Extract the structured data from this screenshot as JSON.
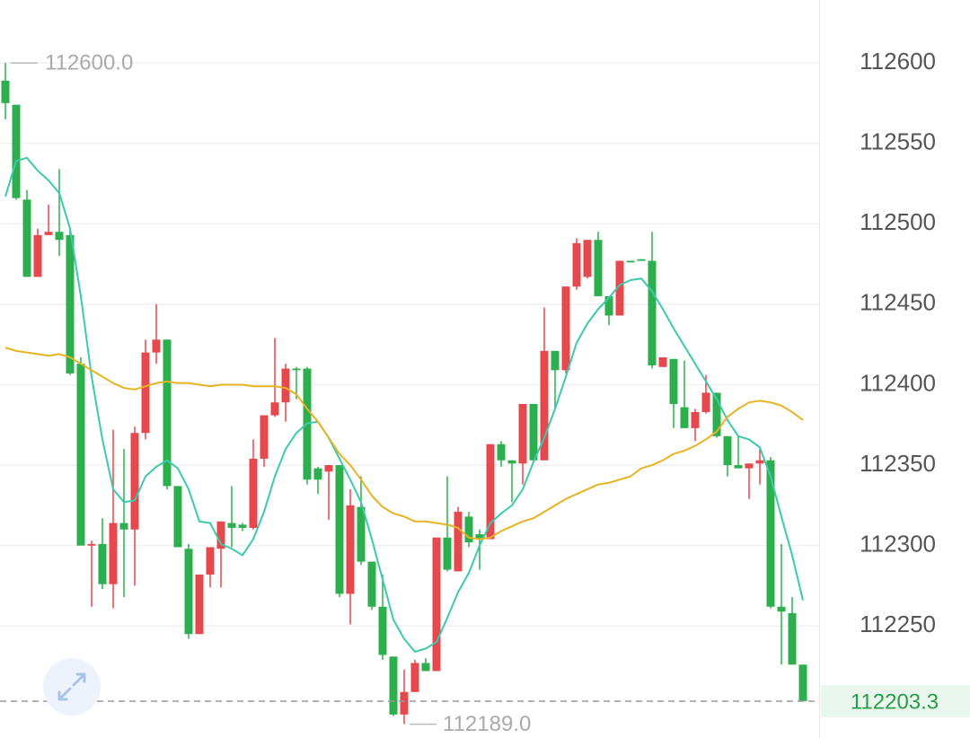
{
  "chart_data": {
    "type": "candlestick",
    "candles": {
      "open": [
        112589,
        112574,
        112515,
        112467,
        112493,
        112495,
        112493,
        112413,
        112300,
        112301,
        112276,
        112314,
        112310,
        112370,
        112420,
        112428,
        112337,
        112298,
        112245,
        112282,
        112298,
        112314,
        112313,
        112311,
        112354,
        112381,
        112389,
        112410,
        112410,
        112348,
        112346,
        112350,
        112270,
        112324,
        112290,
        112262,
        112231,
        112195,
        112209,
        112227,
        112222,
        112305,
        112284,
        112318,
        112307,
        112304,
        112363,
        112353,
        112351,
        112388,
        112353,
        112421,
        112409,
        112461,
        112467,
        112490,
        112455,
        112443,
        112477,
        112478,
        112477,
        112411,
        112416,
        112386,
        112373,
        112383,
        112395,
        112368,
        112350,
        112348,
        112351,
        112353,
        112262,
        112258,
        112226
      ],
      "high": [
        112600,
        112574,
        112521,
        112497,
        112512,
        112534,
        112497,
        112417,
        112303,
        112317,
        112372,
        112360,
        112374,
        112428,
        112450,
        112428,
        112337,
        112301,
        112282,
        112299,
        112315,
        112337,
        112314,
        112366,
        112381,
        112429,
        112413,
        112411,
        112411,
        112349,
        112350,
        112350,
        112335,
        112343,
        112290,
        112282,
        112231,
        112223,
        112229,
        112230,
        112305,
        112343,
        112324,
        112321,
        112310,
        112363,
        112365,
        112353,
        112388,
        112388,
        112448,
        112421,
        112461,
        112491,
        112490,
        112495,
        112455,
        112477,
        112477,
        112478,
        112495,
        112417,
        112416,
        112415,
        112385,
        112406,
        112395,
        112368,
        112368,
        112351,
        112360,
        112355,
        112301,
        112268,
        112226
      ],
      "low": [
        112565,
        112515,
        112467,
        112467,
        112493,
        112480,
        112406,
        112300,
        112262,
        112273,
        112261,
        112268,
        112275,
        112366,
        112413,
        112335,
        112299,
        112242,
        112245,
        112274,
        112274,
        112299,
        112309,
        112310,
        112349,
        112380,
        112377,
        112391,
        112338,
        112332,
        112316,
        112268,
        112251,
        112288,
        112260,
        112229,
        112194,
        112189,
        112209,
        112222,
        112222,
        112284,
        112284,
        112299,
        112285,
        112304,
        112349,
        112327,
        112338,
        112352,
        112353,
        112385,
        112407,
        112459,
        112466,
        112455,
        112437,
        112443,
        112476,
        112477,
        112410,
        112411,
        112373,
        112373,
        112365,
        112382,
        112367,
        112343,
        112348,
        112329,
        112338,
        112261,
        112226,
        112226,
        112203.3
      ],
      "close": [
        112575,
        112516,
        112467,
        112493,
        112495,
        112490,
        112407,
        112300,
        112301,
        112276,
        112314,
        112310,
        112370,
        112420,
        112428,
        112337,
        112299,
        112245,
        112282,
        112299,
        112315,
        112311,
        112311,
        112354,
        112381,
        112389,
        112410,
        112409,
        112341,
        112341,
        112350,
        112270,
        112325,
        112290,
        112262,
        112232,
        112195,
        112209,
        112227,
        112222,
        112305,
        112285,
        112321,
        112302,
        112304,
        112363,
        112353,
        112351,
        112388,
        112353,
        112421,
        112409,
        112461,
        112488,
        112490,
        112455,
        112443,
        112477,
        112476,
        112477,
        112412,
        112417,
        112388,
        112373,
        112383,
        112395,
        112368,
        112350,
        112348,
        112351,
        112353,
        112262,
        112259,
        112226,
        112203.3
      ]
    },
    "up_color": "#e5484d",
    "down_color": "#2eaf4f",
    "series": [
      {
        "color": "#3cc9ad",
        "values": [
          112517,
          112539,
          112541,
          112533,
          112527,
          112519,
          112497,
          112455,
          112405,
          112366,
          112335,
          112327,
          112328,
          112343,
          112349,
          112353,
          112348,
          112335,
          112315,
          112314,
          112301,
          112298,
          112294,
          112304,
          112321,
          112343,
          112360,
          112370,
          112376,
          112377,
          112367,
          112354,
          112341,
          112327,
          112304,
          112279,
          112254,
          112242,
          112234,
          112236,
          112240,
          112255,
          112271,
          112283,
          112300,
          112314,
          112320,
          112325,
          112335,
          112352,
          112367,
          112385,
          112405,
          112426,
          112438,
          112447,
          112454,
          112462,
          112465,
          112466,
          112458,
          112447,
          112435,
          112424,
          112413,
          112402,
          112391,
          112378,
          112368,
          112366,
          112361,
          112343,
          112318,
          112294,
          112266
        ]
      },
      {
        "color": "#e6b422",
        "values": [
          112423,
          112421,
          112420,
          112419,
          112418,
          112419,
          112417,
          112413,
          112409,
          112405,
          112401,
          112398,
          112397,
          112399,
          112401,
          112402,
          112401,
          112401,
          112400,
          112399,
          112400,
          112400,
          112400,
          112399,
          112399,
          112399,
          112398,
          112394,
          112385,
          112377,
          112367,
          112357,
          112350,
          112341,
          112331,
          112324,
          112320,
          112318,
          112315,
          112315,
          112314,
          112313,
          112311,
          112305,
          112304,
          112305,
          112309,
          112312,
          112315,
          112317,
          112321,
          112325,
          112329,
          112332,
          112335,
          112338,
          112339,
          112341,
          112343,
          112348,
          112350,
          112353,
          112357,
          112359,
          112362,
          112366,
          112371,
          112380,
          112385,
          112389,
          112390,
          112389,
          112387,
          112383,
          112378
        ]
      }
    ],
    "ylim": [
      112180.4,
      112639.1
    ],
    "yticks": [
      112250,
      112300,
      112350,
      112400,
      112450,
      112500,
      112550,
      112600
    ],
    "grid": true,
    "high_marker": {
      "value": 112600,
      "label": "112600.0"
    },
    "low_marker": {
      "value": 112189,
      "label": "112189.0"
    },
    "last_price": 112203.3
  }
}
